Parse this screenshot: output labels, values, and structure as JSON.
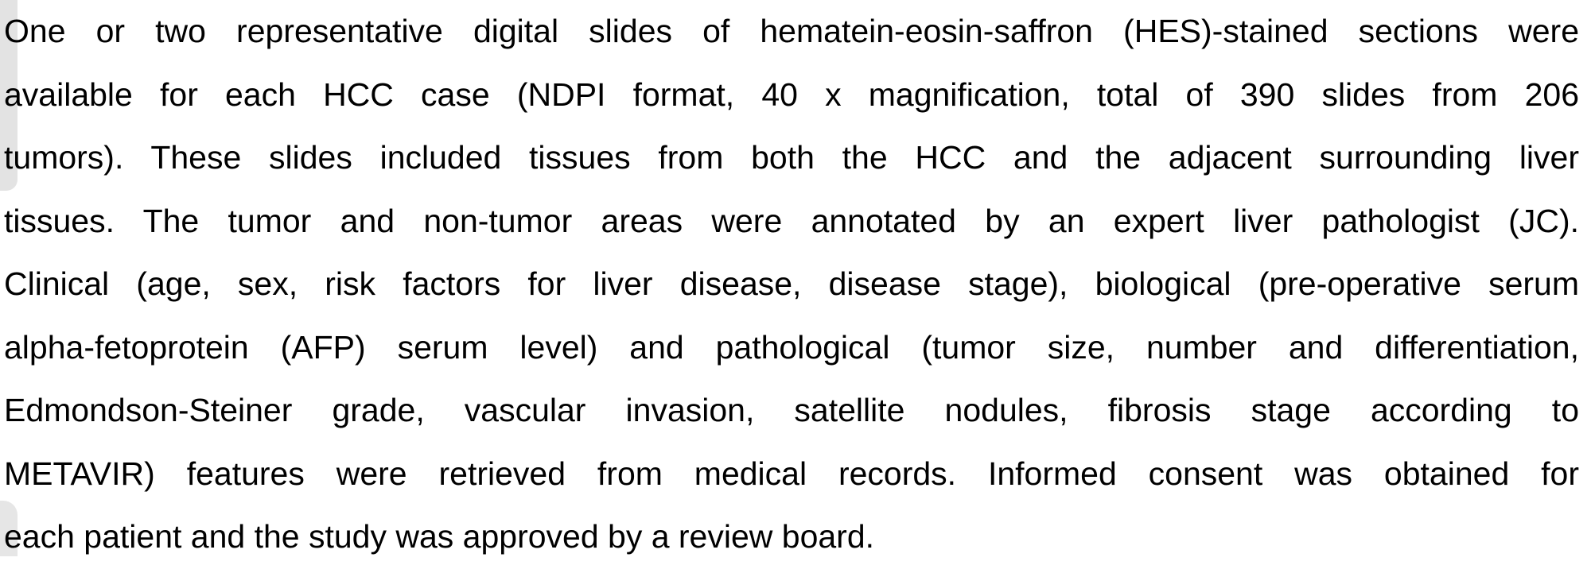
{
  "paragraph": {
    "lines": [
      "One or two representative digital slides of hematein-eosin-saffron (HES)-stained sections were",
      "available for each HCC case (NDPI format, 40 x magnification, total of 390 slides from 206",
      "tumors). These slides included tissues from both the HCC and the adjacent surrounding liver",
      "tissues. The tumor and non-tumor areas were annotated by an expert liver pathologist (JC).",
      "Clinical (age, sex, risk factors for liver disease, disease stage), biological (pre-operative serum",
      "alpha-fetoprotein (AFP) serum level) and pathological (tumor size, number and differentiation,",
      "Edmondson-Steiner grade, vascular invasion, satellite nodules, fibrosis stage according to",
      "METAVIR) features were retrieved from medical records. Informed consent was obtained for",
      "each patient and the study was approved by a review board."
    ]
  }
}
